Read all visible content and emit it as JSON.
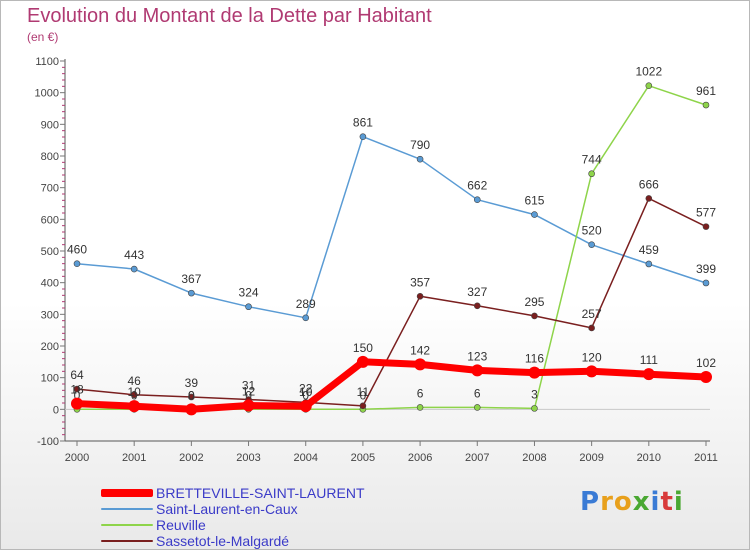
{
  "title": "Evolution du Montant de la Dette par Habitant",
  "unit": "(en €)",
  "logo": {
    "letters": [
      "P",
      "r",
      "o",
      "x",
      "i",
      "t",
      "i"
    ],
    "colors": [
      "#3a7bd5",
      "#e8a01c",
      "#e8a01c",
      "#4aa832",
      "#3a7bd5",
      "#d83a3a",
      "#4aa832"
    ]
  },
  "chart_data": {
    "type": "line",
    "categories": [
      "2000",
      "2001",
      "2002",
      "2003",
      "2004",
      "2005",
      "2006",
      "2007",
      "2008",
      "2009",
      "2010",
      "2011"
    ],
    "ylim": [
      -100,
      1100
    ],
    "yticks": [
      -100,
      0,
      100,
      200,
      300,
      400,
      500,
      600,
      700,
      800,
      900,
      1000,
      1100
    ],
    "grid": false,
    "legend_position": "bottom-left",
    "series": [
      {
        "name": "Saint-Laurent-en-Caux",
        "color": "#5a9bd4",
        "width": 1.5,
        "marker": true,
        "values": [
          460,
          443,
          367,
          324,
          289,
          861,
          790,
          662,
          615,
          520,
          459,
          399
        ],
        "labels": [
          "460",
          "443",
          "367",
          "324",
          "289",
          "861",
          "790",
          "662",
          "615",
          "520",
          "459",
          "399"
        ]
      },
      {
        "name": "Reuville",
        "color": "#8ed44a",
        "width": 1.5,
        "marker": true,
        "values": [
          0,
          0,
          0,
          0,
          0,
          0,
          6,
          6,
          3,
          744,
          1022,
          961
        ],
        "labels": [
          "0",
          "0",
          "0",
          "0",
          "0",
          "0",
          "6",
          "6",
          "3",
          "744",
          "1022",
          "961"
        ]
      },
      {
        "name": "Sassetot-le-Malgardé",
        "color": "#7a1f1f",
        "width": 1.5,
        "marker": true,
        "values": [
          64,
          46,
          39,
          31,
          22,
          11,
          357,
          327,
          295,
          257,
          666,
          577
        ],
        "labels": [
          "64",
          "46",
          "39",
          "31",
          "22",
          "11",
          "357",
          "327",
          "295",
          "257",
          "666",
          "577"
        ]
      },
      {
        "name": "BRETTEVILLE-SAINT-LAURENT",
        "color": "#ff0000",
        "width": 7,
        "marker": true,
        "values": [
          18,
          10,
          0,
          12,
          10,
          150,
          142,
          123,
          116,
          120,
          111,
          102
        ],
        "labels": [
          "18",
          "10",
          "0",
          "12",
          "10",
          "150",
          "142",
          "123",
          "116",
          "120",
          "111",
          "102"
        ]
      }
    ],
    "legend": [
      {
        "name": "BRETTEVILLE-SAINT-LAURENT",
        "color": "#ff0000",
        "thickness": 8
      },
      {
        "name": "Saint-Laurent-en-Caux",
        "color": "#5a9bd4",
        "thickness": 2
      },
      {
        "name": "Reuville",
        "color": "#8ed44a",
        "thickness": 2
      },
      {
        "name": "Sassetot-le-Malgardé",
        "color": "#7a1f1f",
        "thickness": 2
      }
    ]
  }
}
